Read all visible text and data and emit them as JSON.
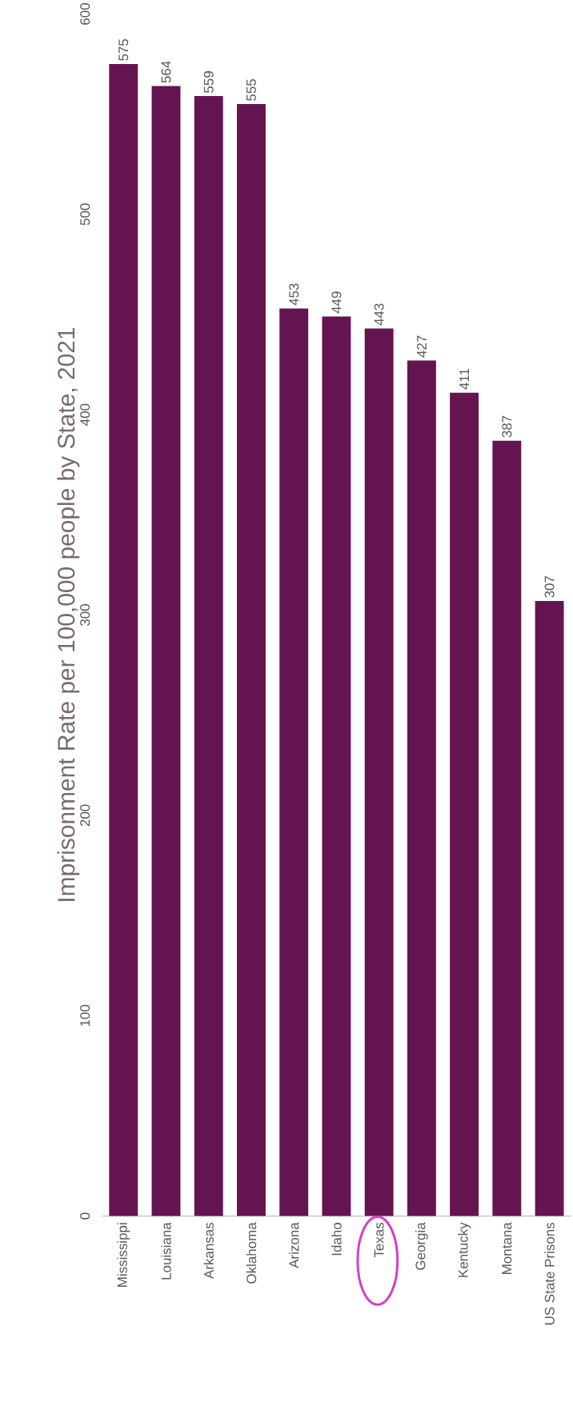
{
  "chart_data": {
    "type": "bar",
    "ylabel": "Imprisonment Rate per 100,000 people by State, 2021",
    "categories": [
      "Mississippi",
      "Louisiana",
      "Arkansas",
      "Oklahoma",
      "Arizona",
      "Idaho",
      "Texas",
      "Georgia",
      "Kentucky",
      "Montana",
      "US State Prisons"
    ],
    "values": [
      575,
      564,
      559,
      555,
      453,
      449,
      443,
      427,
      411,
      387,
      307
    ],
    "color": "#641450",
    "ylim": [
      0,
      600
    ],
    "yticks": [
      0,
      100,
      200,
      300,
      400,
      500,
      600
    ],
    "data_labels": true,
    "grid": false
  }
}
